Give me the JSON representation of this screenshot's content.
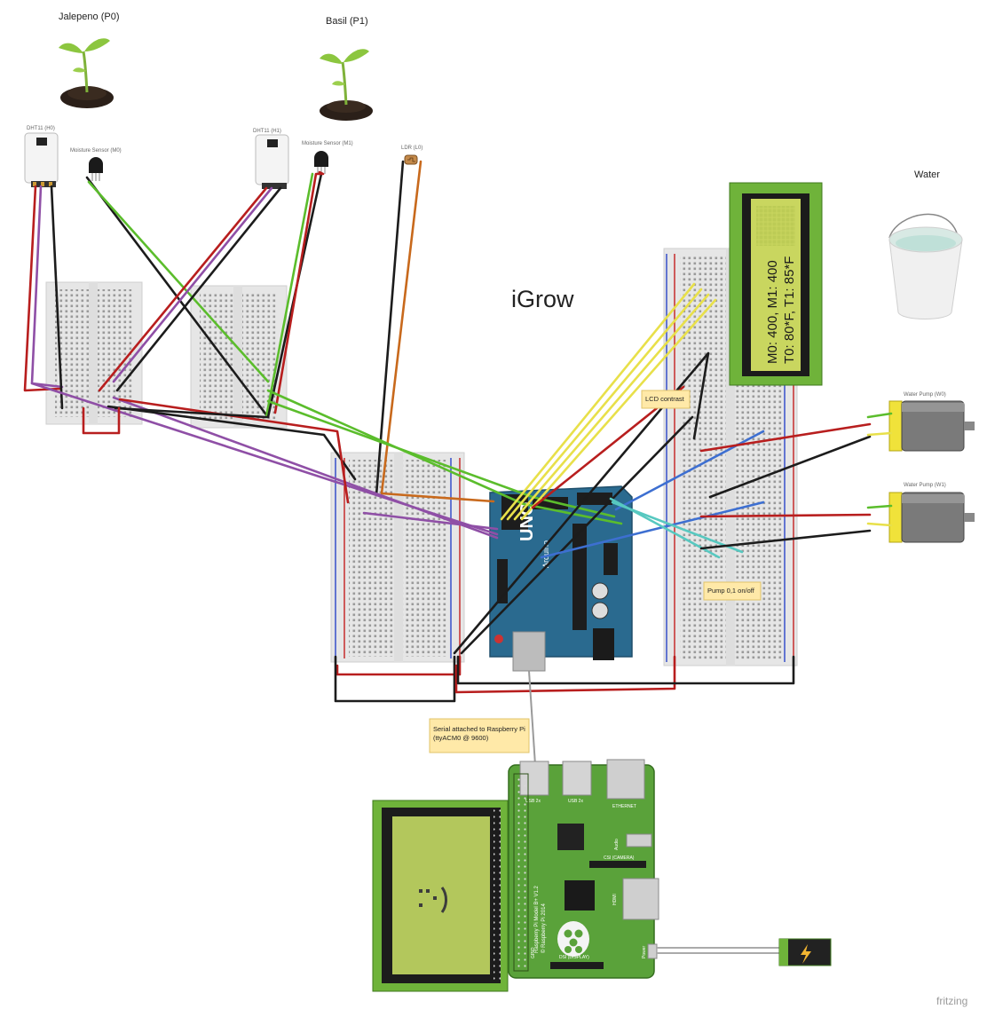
{
  "diagram": {
    "title": "iGrow",
    "plants": [
      {
        "label": "Jalepeno (P0)"
      },
      {
        "label": "Basil (P1)"
      }
    ],
    "sensors": {
      "dht_h0": "DHT11 (H0)",
      "dht_h1": "DHT11 (H1)",
      "moisture_m0": "Moisture Sensor (M0)",
      "moisture_m1": "Moisture Sensor (M1)",
      "ldr": "LDR (L0)"
    },
    "water_label": "Water",
    "pumps": {
      "w0": "Water Pump (W0)",
      "w1": "Water Pump (W1)"
    },
    "lcd": {
      "line1": "M0: 400, M1: 400",
      "line2": "T0: 80*F, T1: 85*F"
    },
    "notes": {
      "lcd_contrast": "LCD contrast",
      "pump_buttons": "Pump 0,1 on/off",
      "serial_line1": "Serial attached to Raspberry Pi",
      "serial_line2": "(ttyACM0 @ 9600)"
    },
    "arduino": {
      "logo": "UNO",
      "brand": "Arduino"
    },
    "raspberry": {
      "model_line1": "Raspberry Pi Model B+ V1.2",
      "model_line2": "© Raspberry Pi 2014",
      "usb_label": "USB 2x",
      "ethernet_label": "ETHERNET",
      "hdmi_label": "HDMI",
      "audio_label": "Audio",
      "camera_label": "CSI (CAMERA)",
      "display_label": "DSI (DISPLAY)",
      "gpio_label": "GPIO",
      "power_label": "Power"
    },
    "watermark": "fritzing",
    "colors": {
      "breadboard": "#e6e6e6",
      "wire_red": "#b81e1e",
      "wire_black": "#1c1c1c",
      "wire_green": "#5bbd2c",
      "wire_purple": "#8f4fa6",
      "wire_yellow": "#e8e04a",
      "wire_blue": "#3d6fd1",
      "wire_orange": "#c8691c",
      "wire_teal": "#57c8c0",
      "arduino": "#2a6a8f",
      "raspberry": "#5aa23a",
      "lcd_screen": "#c9d65f",
      "lcd_frame": "#6fb33a",
      "note_bg": "#ffe9a8"
    }
  }
}
